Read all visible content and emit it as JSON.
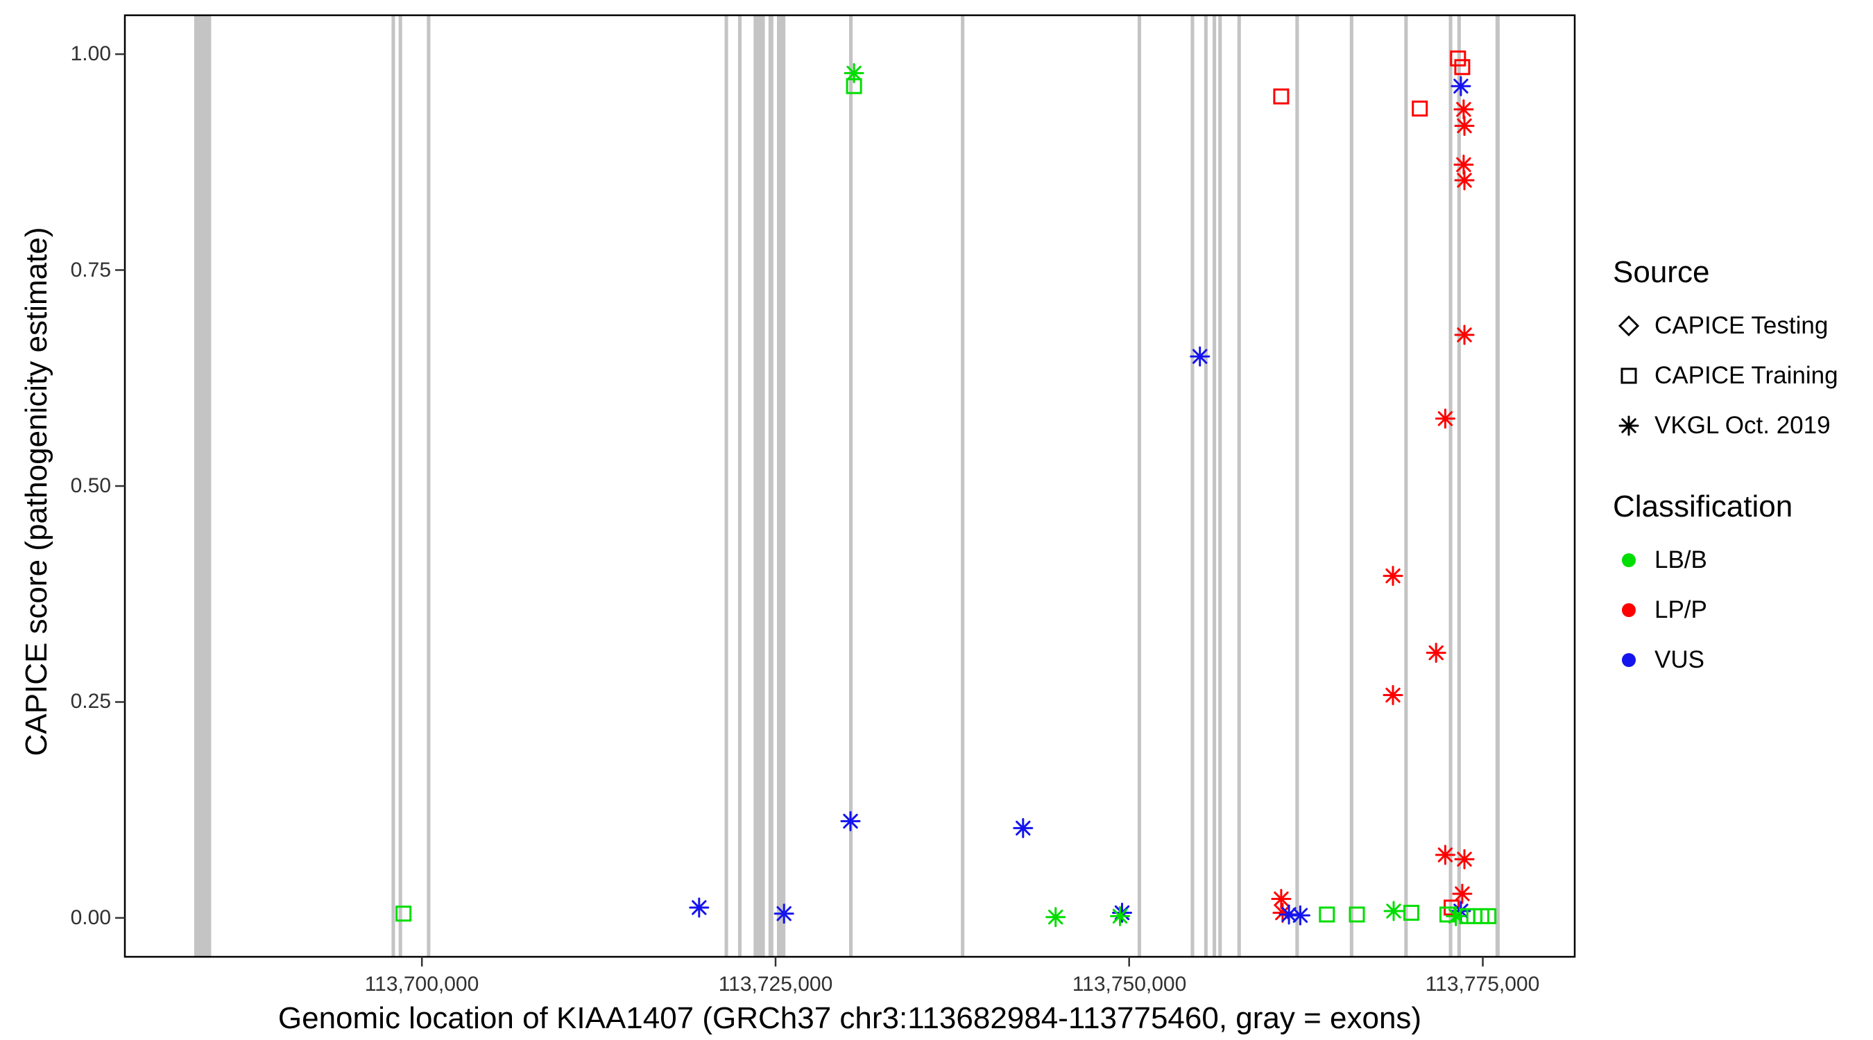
{
  "chart_data": {
    "type": "scatter",
    "xlabel": "Genomic location of KIAA1407 (GRCh37 chr3:113682984-113775460, gray = exons)",
    "ylabel": "CAPICE score (pathogenicity estimate)",
    "xlim": [
      113679000,
      113781500
    ],
    "ylim": [
      -0.045,
      1.045
    ],
    "grid": false,
    "x_ticks": [
      {
        "value": 113700000,
        "label": "113,700,000"
      },
      {
        "value": 113725000,
        "label": "113,725,000"
      },
      {
        "value": 113750000,
        "label": "113,750,000"
      },
      {
        "value": 113775000,
        "label": "113,775,000"
      }
    ],
    "y_ticks": [
      {
        "value": 0.0,
        "label": "0.00"
      },
      {
        "value": 0.25,
        "label": "0.25"
      },
      {
        "value": 0.5,
        "label": "0.50"
      },
      {
        "value": 0.75,
        "label": "0.75"
      },
      {
        "value": 1.0,
        "label": "1.00"
      }
    ],
    "exon_color": "#c4c4c4",
    "exons": [
      [
        113683900,
        113685100
      ],
      [
        113697850,
        113698100
      ],
      [
        113698350,
        113698600
      ],
      [
        113700350,
        113700600
      ],
      [
        113721400,
        113721650
      ],
      [
        113722350,
        113722600
      ],
      [
        113723450,
        113724250
      ],
      [
        113724500,
        113724850
      ],
      [
        113725100,
        113725700
      ],
      [
        113730200,
        113730450
      ],
      [
        113738100,
        113738350
      ],
      [
        113750600,
        113750850
      ],
      [
        113754350,
        113754600
      ],
      [
        113755300,
        113755550
      ],
      [
        113755900,
        113756150
      ],
      [
        113756300,
        113756550
      ],
      [
        113757650,
        113757900
      ],
      [
        113761750,
        113762000
      ],
      [
        113765600,
        113765850
      ],
      [
        113769450,
        113769700
      ],
      [
        113772600,
        113772850
      ],
      [
        113773200,
        113773450
      ],
      [
        113775900,
        113776200
      ]
    ],
    "classification_colors": {
      "LB/B": "#00dd00",
      "LP/P": "#ff0000",
      "VUS": "#1414ee"
    },
    "source_shapes": {
      "CAPICE Testing": "diamond",
      "CAPICE Training": "square",
      "VKGL Oct. 2019": "asterisk"
    },
    "points": [
      {
        "x": 113773250,
        "y": 0.995,
        "classification": "LP/P",
        "source": "CAPICE Training"
      },
      {
        "x": 113773550,
        "y": 0.985,
        "classification": "LP/P",
        "source": "CAPICE Training"
      },
      {
        "x": 113760750,
        "y": 0.951,
        "classification": "LP/P",
        "source": "CAPICE Training"
      },
      {
        "x": 113770550,
        "y": 0.937,
        "classification": "LP/P",
        "source": "CAPICE Training"
      },
      {
        "x": 113772800,
        "y": 0.012,
        "classification": "LP/P",
        "source": "CAPICE Training"
      },
      {
        "x": 113773650,
        "y": 0.936,
        "classification": "LP/P",
        "source": "VKGL Oct. 2019"
      },
      {
        "x": 113773700,
        "y": 0.917,
        "classification": "LP/P",
        "source": "VKGL Oct. 2019"
      },
      {
        "x": 113773650,
        "y": 0.872,
        "classification": "LP/P",
        "source": "VKGL Oct. 2019"
      },
      {
        "x": 113773700,
        "y": 0.854,
        "classification": "LP/P",
        "source": "VKGL Oct. 2019"
      },
      {
        "x": 113773700,
        "y": 0.675,
        "classification": "LP/P",
        "source": "VKGL Oct. 2019"
      },
      {
        "x": 113772350,
        "y": 0.578,
        "classification": "LP/P",
        "source": "VKGL Oct. 2019"
      },
      {
        "x": 113768650,
        "y": 0.396,
        "classification": "LP/P",
        "source": "VKGL Oct. 2019"
      },
      {
        "x": 113771700,
        "y": 0.307,
        "classification": "LP/P",
        "source": "VKGL Oct. 2019"
      },
      {
        "x": 113768650,
        "y": 0.258,
        "classification": "LP/P",
        "source": "VKGL Oct. 2019"
      },
      {
        "x": 113772350,
        "y": 0.073,
        "classification": "LP/P",
        "source": "VKGL Oct. 2019"
      },
      {
        "x": 113773700,
        "y": 0.068,
        "classification": "LP/P",
        "source": "VKGL Oct. 2019"
      },
      {
        "x": 113773550,
        "y": 0.028,
        "classification": "LP/P",
        "source": "VKGL Oct. 2019"
      },
      {
        "x": 113760750,
        "y": 0.022,
        "classification": "LP/P",
        "source": "VKGL Oct. 2019"
      },
      {
        "x": 113760850,
        "y": 0.006,
        "classification": "LP/P",
        "source": "VKGL Oct. 2019"
      },
      {
        "x": 113773450,
        "y": 0.963,
        "classification": "VUS",
        "source": "VKGL Oct. 2019"
      },
      {
        "x": 113755000,
        "y": 0.65,
        "classification": "VUS",
        "source": "VKGL Oct. 2019"
      },
      {
        "x": 113730300,
        "y": 0.112,
        "classification": "VUS",
        "source": "VKGL Oct. 2019"
      },
      {
        "x": 113742500,
        "y": 0.104,
        "classification": "VUS",
        "source": "VKGL Oct. 2019"
      },
      {
        "x": 113719600,
        "y": 0.012,
        "classification": "VUS",
        "source": "VKGL Oct. 2019"
      },
      {
        "x": 113725600,
        "y": 0.005,
        "classification": "VUS",
        "source": "VKGL Oct. 2019"
      },
      {
        "x": 113749500,
        "y": 0.006,
        "classification": "VUS",
        "source": "VKGL Oct. 2019"
      },
      {
        "x": 113761300,
        "y": 0.004,
        "classification": "VUS",
        "source": "VKGL Oct. 2019"
      },
      {
        "x": 113762100,
        "y": 0.003,
        "classification": "VUS",
        "source": "VKGL Oct. 2019"
      },
      {
        "x": 113773450,
        "y": 0.008,
        "classification": "VUS",
        "source": "VKGL Oct. 2019"
      },
      {
        "x": 113730550,
        "y": 0.978,
        "classification": "LB/B",
        "source": "VKGL Oct. 2019"
      },
      {
        "x": 113744800,
        "y": 0.001,
        "classification": "LB/B",
        "source": "VKGL Oct. 2019"
      },
      {
        "x": 113749350,
        "y": 0.002,
        "classification": "LB/B",
        "source": "VKGL Oct. 2019"
      },
      {
        "x": 113768700,
        "y": 0.008,
        "classification": "LB/B",
        "source": "VKGL Oct. 2019"
      },
      {
        "x": 113773100,
        "y": 0.002,
        "classification": "LB/B",
        "source": "VKGL Oct. 2019"
      },
      {
        "x": 113730550,
        "y": 0.963,
        "classification": "LB/B",
        "source": "CAPICE Training"
      },
      {
        "x": 113698700,
        "y": 0.005,
        "classification": "LB/B",
        "source": "CAPICE Training"
      },
      {
        "x": 113763980,
        "y": 0.004,
        "classification": "LB/B",
        "source": "CAPICE Training"
      },
      {
        "x": 113766100,
        "y": 0.004,
        "classification": "LB/B",
        "source": "CAPICE Training"
      },
      {
        "x": 113769950,
        "y": 0.006,
        "classification": "LB/B",
        "source": "CAPICE Training"
      },
      {
        "x": 113772500,
        "y": 0.004,
        "classification": "LB/B",
        "source": "CAPICE Training"
      },
      {
        "x": 113773900,
        "y": 0.002,
        "classification": "LB/B",
        "source": "CAPICE Training"
      },
      {
        "x": 113774400,
        "y": 0.002,
        "classification": "LB/B",
        "source": "CAPICE Training"
      },
      {
        "x": 113774900,
        "y": 0.002,
        "classification": "LB/B",
        "source": "CAPICE Training"
      },
      {
        "x": 113775400,
        "y": 0.002,
        "classification": "LB/B",
        "source": "CAPICE Training"
      }
    ],
    "legend": {
      "source_title": "Source",
      "source_items": [
        {
          "label": "CAPICE Testing",
          "shape": "diamond"
        },
        {
          "label": "CAPICE Training",
          "shape": "square"
        },
        {
          "label": "VKGL Oct. 2019",
          "shape": "asterisk"
        }
      ],
      "classification_title": "Classification",
      "classification_items": [
        {
          "label": "LB/B",
          "color": "#00dd00"
        },
        {
          "label": "LP/P",
          "color": "#ff0000"
        },
        {
          "label": "VUS",
          "color": "#1414ee"
        }
      ]
    }
  }
}
